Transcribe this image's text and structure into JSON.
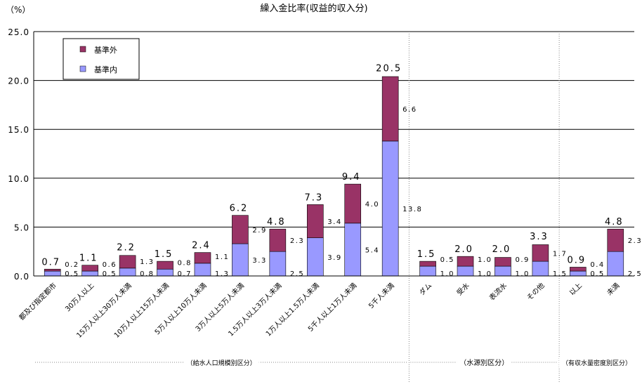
{
  "chart_data": {
    "type": "bar",
    "stacked": true,
    "title": "繰入金比率(収益的収入分)",
    "unit_label": "（%）",
    "ylim": [
      0,
      25
    ],
    "yticks": [
      "0.0",
      "5.0",
      "10.0",
      "15.0",
      "20.0",
      "25.0"
    ],
    "grid": true,
    "legend_position": "top-left",
    "categories": [
      "都及び指定都市",
      "30万人以上",
      "15万人以上30万人未満",
      "10万人以上15万人未満",
      "5万人以上10万人未満",
      "3万人以上5万人未満",
      "1.5万人以上3万人未満",
      "1万人以上1.5万人未満",
      "5千人以上1万人未満",
      "5千人未満",
      "ダム",
      "受水",
      "表流水",
      "その他",
      "以上",
      "未満"
    ],
    "series": [
      {
        "name": "基準内",
        "color": "#9999ff",
        "values": [
          0.5,
          0.5,
          0.8,
          0.7,
          1.3,
          3.3,
          2.5,
          3.9,
          5.4,
          13.8,
          1.0,
          1.0,
          1.0,
          1.5,
          0.5,
          2.5
        ],
        "labels": [
          "0.5",
          "0.5",
          "0.8",
          "0.7",
          "1.3",
          "3.3",
          "2.5",
          "3.9",
          "5.4",
          "13.8",
          "1.0",
          "1.0",
          "1.0",
          "1.5",
          "0.5",
          "2.5"
        ]
      },
      {
        "name": "基準外",
        "color": "#993366",
        "values": [
          0.2,
          0.6,
          1.3,
          0.8,
          1.1,
          2.9,
          2.3,
          3.4,
          4.0,
          6.6,
          0.5,
          1.0,
          0.9,
          1.7,
          0.4,
          2.3
        ],
        "labels": [
          "0.2",
          "0.6",
          "1.3",
          "0.8",
          "1.1",
          "2.9",
          "2.3",
          "3.4",
          "4.0",
          "6.6",
          "0.5",
          "1.0",
          "0.9",
          "1.7",
          "0.4",
          "2.3"
        ]
      }
    ],
    "totals": [
      0.7,
      1.1,
      2.2,
      1.5,
      2.4,
      6.2,
      4.8,
      7.3,
      9.4,
      20.5,
      1.5,
      2.0,
      2.0,
      3.3,
      0.9,
      4.8
    ],
    "total_labels": [
      "0.7",
      "1.1",
      "2.2",
      "1.5",
      "2.4",
      "6.2",
      "4.8",
      "7.3",
      "9.4",
      "20.5",
      "1.5",
      "2.0",
      "2.0",
      "3.3",
      "0.9",
      "4.8"
    ],
    "groups": [
      {
        "label": "（給水人口規模別区分）",
        "first": 0,
        "last": 9
      },
      {
        "label": "（水源別区分）",
        "first": 10,
        "last": 13
      },
      {
        "label": "（有収水量密度別区分）",
        "first": 14,
        "last": 15
      }
    ]
  }
}
